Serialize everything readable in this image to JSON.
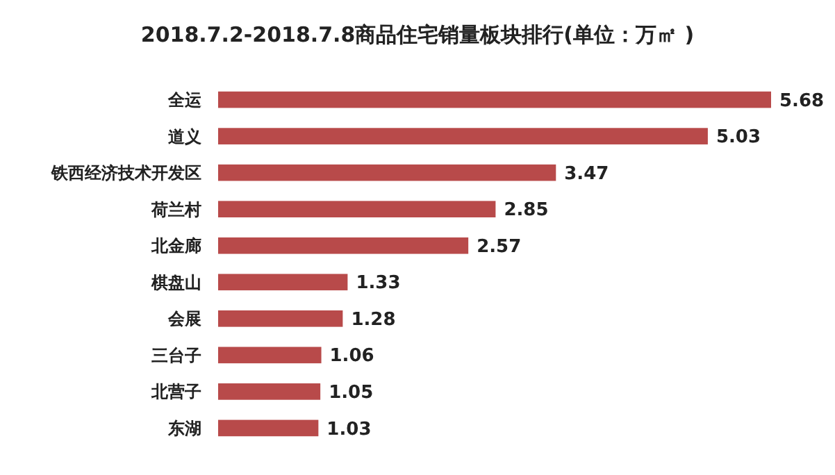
{
  "chart_data": {
    "type": "bar",
    "orientation": "horizontal",
    "title": "2018.7.2-2018.7.8商品住宅销量板块排行(单位：万㎡ )",
    "categories": [
      "全运",
      "道义",
      "铁西经济技术开发区",
      "荷兰村",
      "北金廊",
      "棋盘山",
      "会展",
      "三台子",
      "北营子",
      "东湖"
    ],
    "values": [
      5.68,
      5.03,
      3.47,
      2.85,
      2.57,
      1.33,
      1.28,
      1.06,
      1.05,
      1.03
    ],
    "color": "#b84a4a",
    "data_labels": true
  }
}
